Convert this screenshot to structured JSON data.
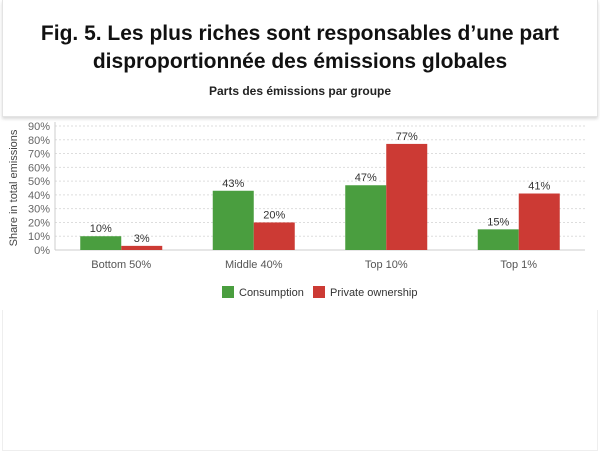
{
  "header": {
    "title_line1": "Fig. 5. Les plus riches sont responsables d’une part",
    "title_line2": "disproportionnée des émissions globales",
    "subtitle": "Parts des émissions par groupe"
  },
  "chart_data": {
    "type": "bar",
    "title": "Parts des émissions par groupe",
    "ylabel": "Share in total emissions",
    "xlabel": "",
    "ylim": [
      0,
      90
    ],
    "yticks": [
      "0%",
      "10%",
      "20%",
      "30%",
      "40%",
      "50%",
      "60%",
      "70%",
      "80%",
      "90%"
    ],
    "categories": [
      "Bottom 50%",
      "Middle 40%",
      "Top 10%",
      "Top 1%"
    ],
    "series": [
      {
        "name": "Consumption",
        "values": [
          10,
          43,
          47,
          15
        ],
        "labels": [
          "10%",
          "43%",
          "47%",
          "15%"
        ],
        "color": "#4a9e3f"
      },
      {
        "name": "Private ownership",
        "values": [
          3,
          20,
          77,
          41
        ],
        "labels": [
          "3%",
          "20%",
          "77%",
          "41%"
        ],
        "color": "#cc3a34"
      }
    ],
    "grid": true,
    "legend": "bottom"
  }
}
